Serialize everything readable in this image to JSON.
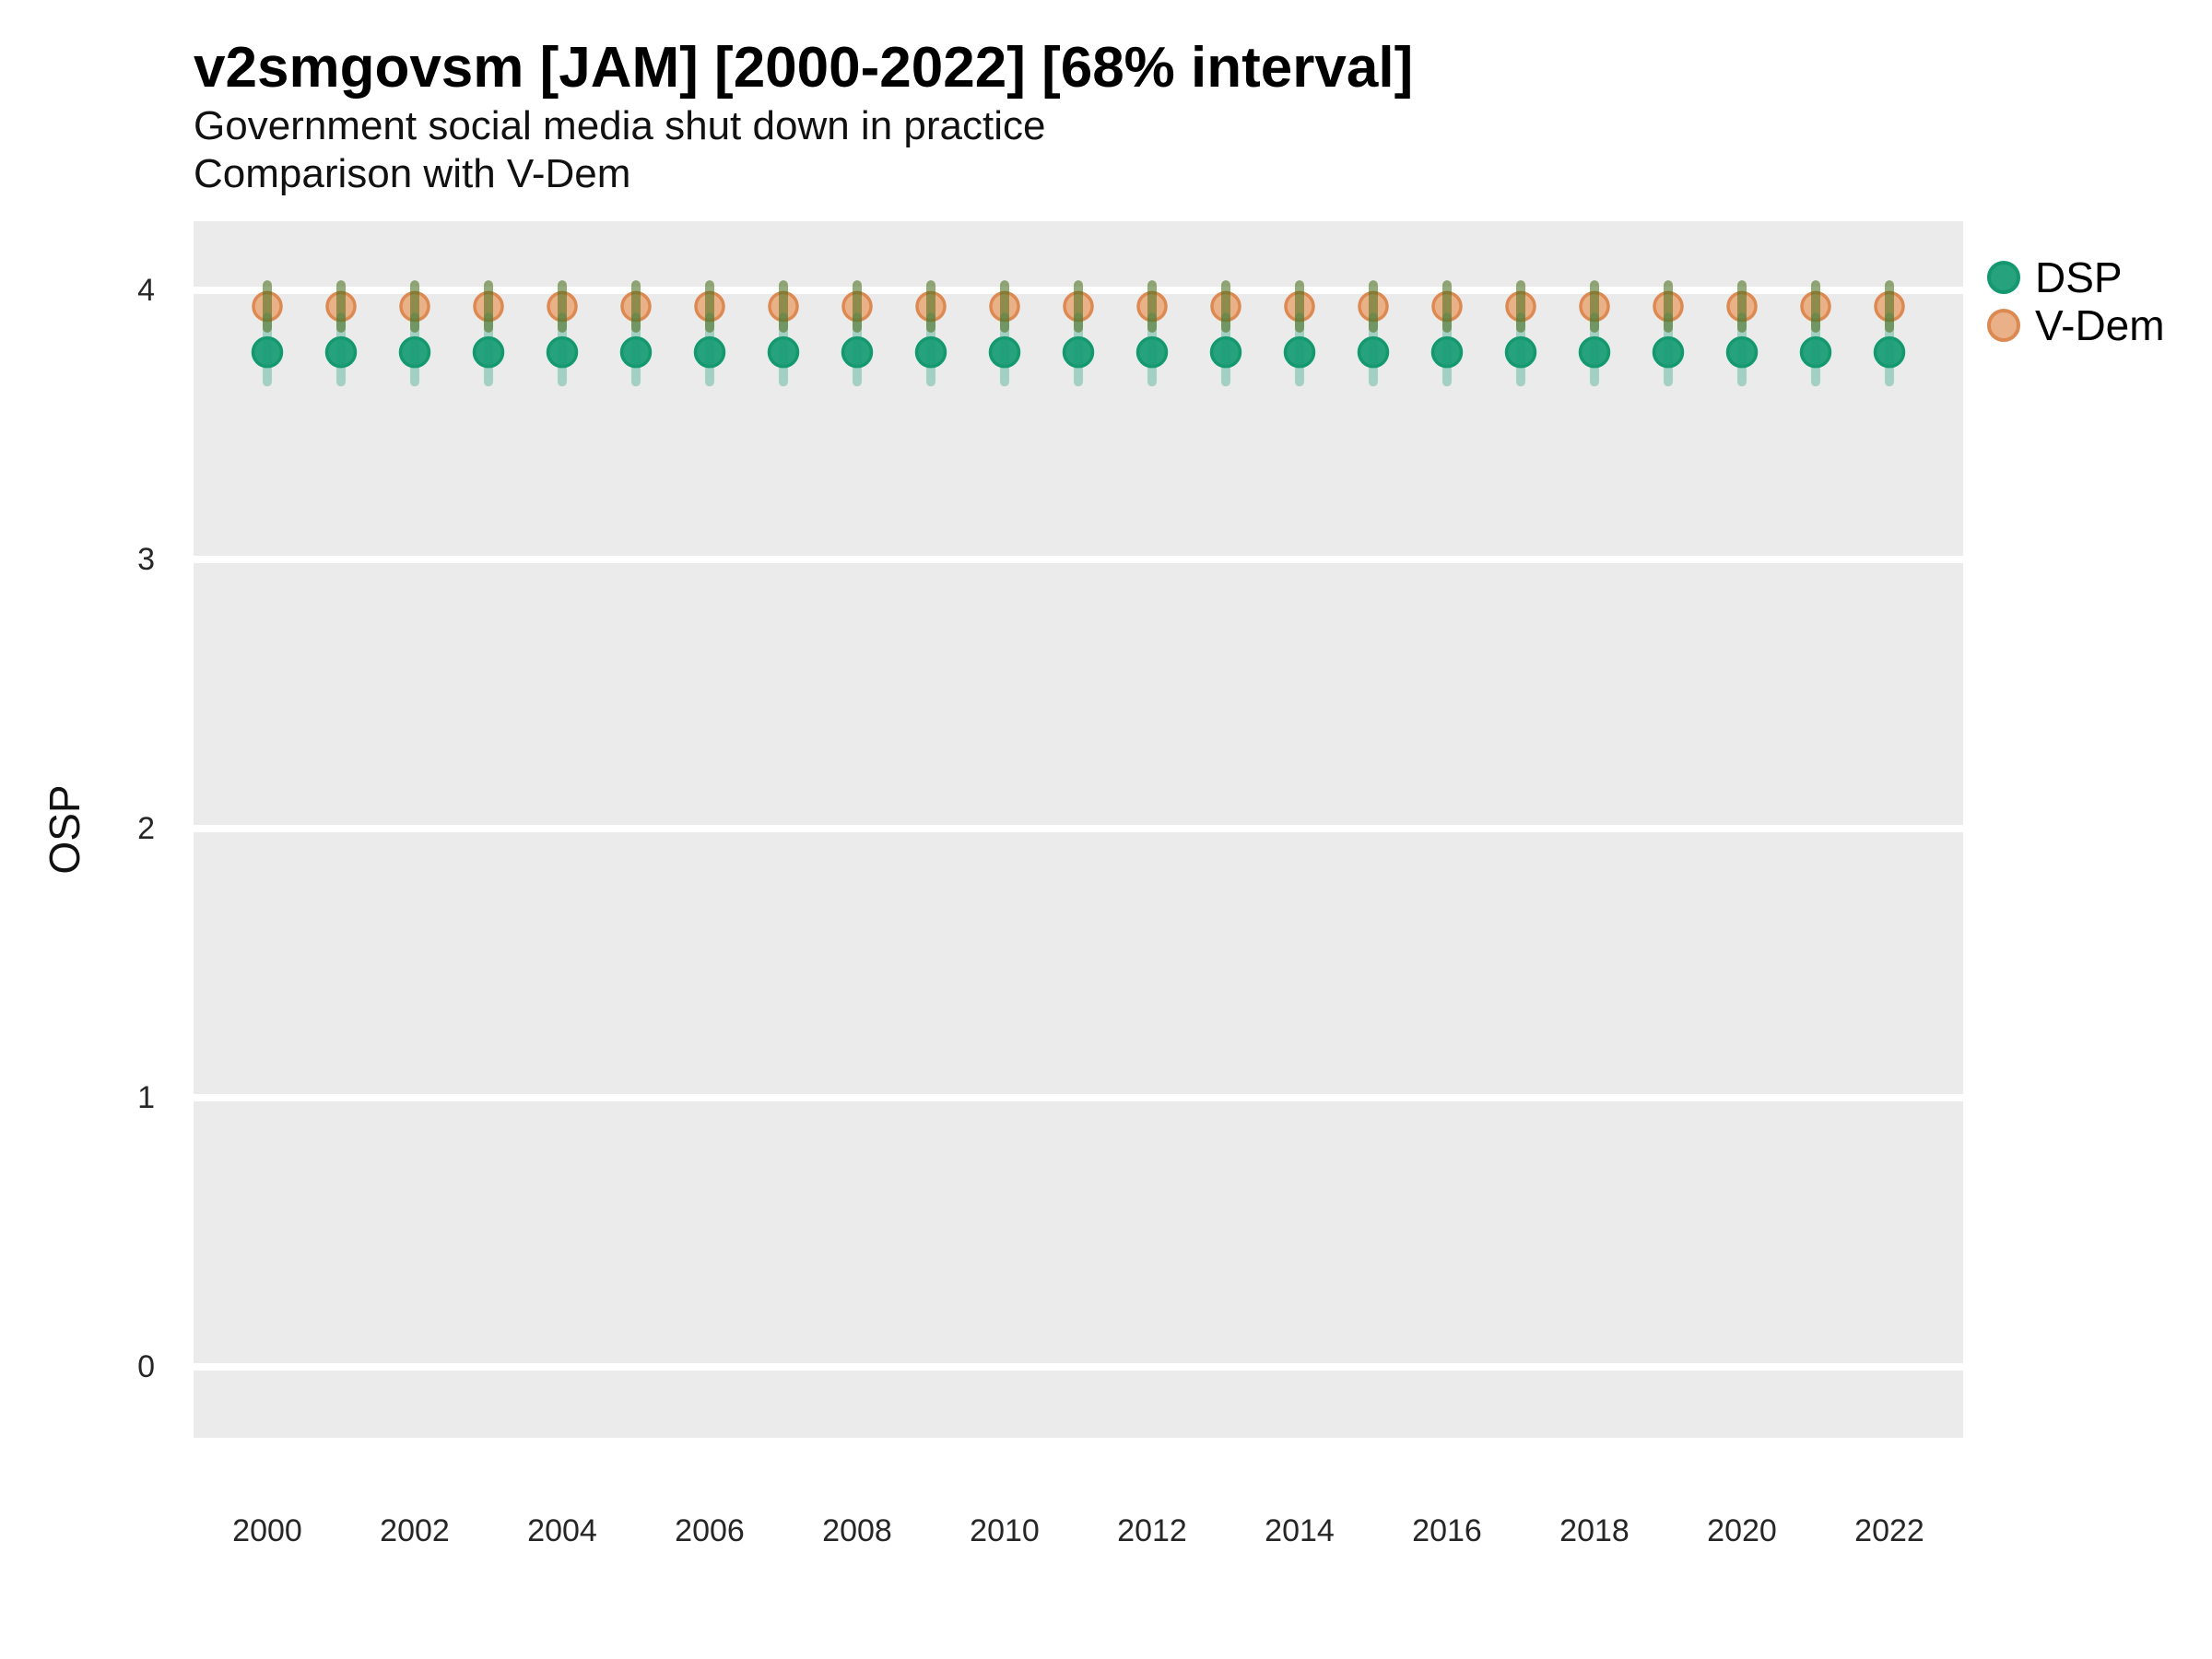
{
  "header": {
    "title": "v2smgovsm [JAM] [2000-2022] [68% interval]",
    "subtitle1": "Government social media shut down in practice",
    "subtitle2": "Comparison with V-Dem"
  },
  "y_axis": {
    "label": "OSP"
  },
  "legend": {
    "items": [
      {
        "label": "DSP",
        "fill": "#26a27d",
        "stroke": "#13986f"
      },
      {
        "label": "V-Dem",
        "fill": "#eab088",
        "stroke": "#dc8a52"
      }
    ]
  },
  "colors": {
    "panel_bg": "#ebebeb",
    "gridline": "#ffffff",
    "dsp_fill": "#26a27d",
    "dsp_stroke": "#13986f",
    "vdem_fill": "#eab088",
    "vdem_stroke": "#dc8a52",
    "dsp_interval": "rgba(27,158,119,0.35)",
    "vdem_interval": "rgba(80,115,35,0.60)",
    "tick_text": "#262626"
  },
  "chart_data": {
    "type": "scatter",
    "title": "v2smgovsm [JAM] [2000-2022] [68% interval]",
    "subtitle": "Government social media shut down in practice",
    "subtitle2": "Comparison with V-Dem",
    "xlabel": "",
    "ylabel": "OSP",
    "ylim": [
      -0.26,
      4.26
    ],
    "grid": "horizontal-major-only",
    "legend_position": "right",
    "y_ticks": [
      "4",
      "3",
      "2",
      "1",
      "0"
    ],
    "x_ticks": [
      "2000",
      "2002",
      "2004",
      "2006",
      "2008",
      "2010",
      "2012",
      "2014",
      "2016",
      "2018",
      "2020",
      "2022"
    ],
    "x": [
      2000,
      2001,
      2002,
      2003,
      2004,
      2005,
      2006,
      2007,
      2008,
      2009,
      2010,
      2011,
      2012,
      2013,
      2014,
      2015,
      2016,
      2017,
      2018,
      2019,
      2020,
      2021,
      2022
    ],
    "series": [
      {
        "name": "DSP",
        "est": [
          3.77,
          3.77,
          3.77,
          3.77,
          3.77,
          3.77,
          3.77,
          3.77,
          3.77,
          3.77,
          3.77,
          3.77,
          3.77,
          3.77,
          3.77,
          3.77,
          3.77,
          3.77,
          3.77,
          3.77,
          3.77,
          3.77,
          3.77
        ],
        "lo": [
          3.66,
          3.66,
          3.66,
          3.66,
          3.66,
          3.66,
          3.66,
          3.66,
          3.66,
          3.66,
          3.66,
          3.66,
          3.66,
          3.66,
          3.66,
          3.66,
          3.66,
          3.66,
          3.66,
          3.66,
          3.66,
          3.66,
          3.66
        ],
        "hi": [
          3.9,
          3.9,
          3.9,
          3.9,
          3.9,
          3.9,
          3.9,
          3.9,
          3.9,
          3.9,
          3.9,
          3.9,
          3.9,
          3.9,
          3.9,
          3.9,
          3.9,
          3.9,
          3.9,
          3.9,
          3.9,
          3.9,
          3.9
        ]
      },
      {
        "name": "V-Dem",
        "est": [
          3.94,
          3.94,
          3.94,
          3.94,
          3.94,
          3.94,
          3.94,
          3.94,
          3.94,
          3.94,
          3.94,
          3.94,
          3.94,
          3.94,
          3.94,
          3.94,
          3.94,
          3.94,
          3.94,
          3.94,
          3.94,
          3.94,
          3.94
        ],
        "lo": [
          3.86,
          3.86,
          3.86,
          3.86,
          3.86,
          3.86,
          3.86,
          3.86,
          3.86,
          3.86,
          3.86,
          3.86,
          3.86,
          3.86,
          3.86,
          3.86,
          3.86,
          3.86,
          3.86,
          3.86,
          3.86,
          3.86,
          3.86
        ],
        "hi": [
          4.02,
          4.02,
          4.02,
          4.02,
          4.02,
          4.02,
          4.02,
          4.02,
          4.02,
          4.02,
          4.02,
          4.02,
          4.02,
          4.02,
          4.02,
          4.02,
          4.02,
          4.02,
          4.02,
          4.02,
          4.02,
          4.02,
          4.02
        ]
      }
    ]
  }
}
